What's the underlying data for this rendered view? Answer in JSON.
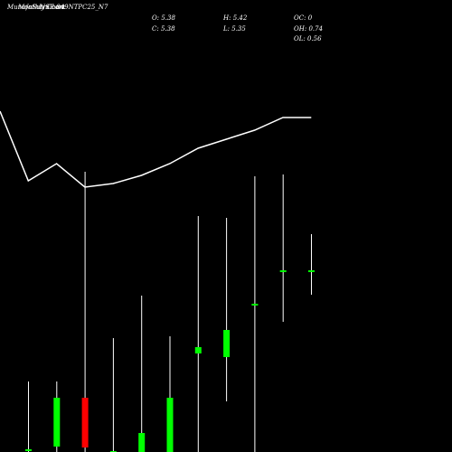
{
  "header": {
    "overlay_1": "MunafaSutra.com",
    "overlay_2": "Monthly Chart",
    "overlay_3": "NSE 849NTPC25_N7"
  },
  "stats": [
    {
      "label": "O:",
      "value": "5.38"
    },
    {
      "label": "H:",
      "value": "5.42"
    },
    {
      "label": "OC:",
      "value": "0"
    },
    {
      "label": "C:",
      "value": "5.38"
    },
    {
      "label": "L:",
      "value": "5.35"
    },
    {
      "label": "OH:",
      "value": "0.74"
    },
    {
      "label": "OL:",
      "value": "0.56"
    }
  ],
  "colors": {
    "background": "#000000",
    "up": "#00ff00",
    "down": "#ff0000",
    "line": "#ffffff",
    "wick": "#ffffff"
  },
  "chart_data": {
    "type": "candlestick",
    "scale": "unlabeled",
    "candles": [
      {
        "high": 0.78,
        "open": 0.01,
        "close": 0.02,
        "low": 0.0,
        "color": "neutral"
      },
      {
        "high": 0.78,
        "open": 0.06,
        "close": 0.6,
        "low": 0.0,
        "color": "up"
      },
      {
        "high": 3.1,
        "open": 0.6,
        "close": 0.05,
        "low": 0.0,
        "color": "down"
      },
      {
        "high": 1.26,
        "open": 0.0,
        "close": 0.0,
        "low": 0.0,
        "color": "neutral"
      },
      {
        "high": 1.73,
        "open": 0.0,
        "close": 0.21,
        "low": 0.0,
        "color": "up"
      },
      {
        "high": 1.28,
        "open": 0.0,
        "close": 0.6,
        "low": 0.0,
        "color": "up"
      },
      {
        "high": 2.61,
        "open": 1.09,
        "close": 1.16,
        "low": 0.0,
        "color": "up"
      },
      {
        "high": 2.59,
        "open": 1.05,
        "close": 1.35,
        "low": 0.56,
        "color": "up"
      },
      {
        "high": 3.05,
        "open": 1.63,
        "close": 1.63,
        "low": 0.0,
        "color": "neutral"
      },
      {
        "high": 3.07,
        "open": 2.0,
        "close": 2.0,
        "low": 1.44,
        "color": "neutral"
      },
      {
        "high": 2.41,
        "open": 2.0,
        "close": 2.0,
        "low": 1.74,
        "color": "neutral"
      }
    ],
    "line": [
      3.77,
      3.0,
      3.19,
      2.93,
      2.97,
      3.06,
      3.19,
      3.36,
      3.46,
      3.56,
      3.7,
      3.7
    ]
  }
}
